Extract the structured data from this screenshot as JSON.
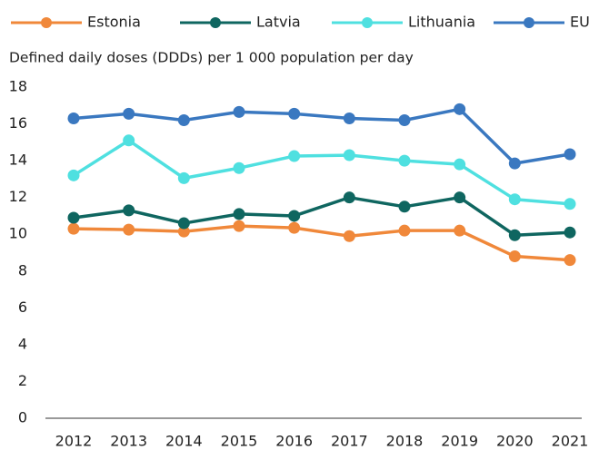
{
  "chart_data": {
    "type": "line",
    "y_axis_label": "Defined daily doses (DDDs) per 1 000 population per day",
    "categories": [
      "2012",
      "2013",
      "2014",
      "2015",
      "2016",
      "2017",
      "2018",
      "2019",
      "2020",
      "2021"
    ],
    "series": [
      {
        "name": "Estonia",
        "color": "#f0883a",
        "values": [
          10.3,
          10.25,
          10.15,
          10.45,
          10.35,
          9.9,
          10.2,
          10.2,
          8.8,
          8.6
        ]
      },
      {
        "name": "Latvia",
        "color": "#0f6660",
        "values": [
          10.9,
          11.3,
          10.6,
          11.1,
          11.0,
          12.0,
          11.5,
          12.0,
          9.95,
          10.1
        ]
      },
      {
        "name": "Lithuania",
        "color": "#4fe0e0",
        "values": [
          13.2,
          15.1,
          13.05,
          13.6,
          14.25,
          14.3,
          14.0,
          13.8,
          11.9,
          11.65
        ]
      },
      {
        "name": "EU",
        "color": "#3a78c0",
        "values": [
          16.3,
          16.55,
          16.2,
          16.65,
          16.55,
          16.3,
          16.2,
          16.8,
          13.85,
          14.35
        ]
      }
    ],
    "ylim": [
      0,
      18
    ],
    "yticks": [
      0,
      2,
      4,
      6,
      8,
      10,
      12,
      14,
      16,
      18
    ],
    "grid": false,
    "legend": "top"
  }
}
